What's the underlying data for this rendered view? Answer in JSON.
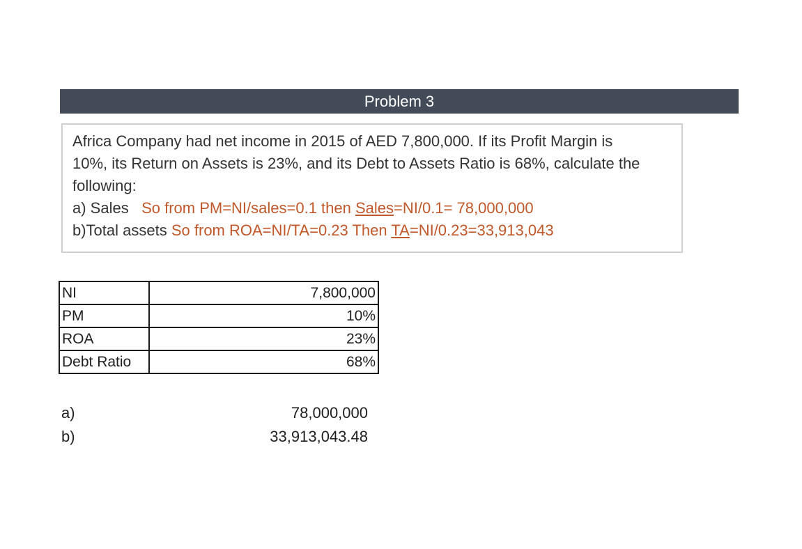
{
  "header": {
    "title": "Problem 3"
  },
  "problem": {
    "line1": "Africa Company had net income in 2015 of AED 7,800,000. If its Profit Margin is",
    "line2": "10%, its Return on Assets is 23%, and its Debt to Assets Ratio is 68%, calculate the",
    "line3": "following:",
    "a_label": "a) Sales",
    "a_note_1": "So from PM=NI/sales=0.1 then ",
    "a_note_u": "Sales",
    "a_note_2": "=NI/0.1= 78,000,000",
    "b_label": "b)Total assets",
    "b_note_1": "So from ROA=NI/TA=0.23 Then ",
    "b_note_u": "TA",
    "b_note_2": "=NI/0.23=33,913,043"
  },
  "table": {
    "rows": [
      {
        "label": "NI",
        "value": "7,800,000"
      },
      {
        "label": "PM",
        "value": "10%"
      },
      {
        "label": "ROA",
        "value": "23%"
      },
      {
        "label": "Debt Ratio",
        "value": "68%"
      }
    ]
  },
  "answers": [
    {
      "label": "a)",
      "value": "78,000,000"
    },
    {
      "label": "b)",
      "value": "33,913,043.48"
    }
  ],
  "colors": {
    "header_bg": "#434b58",
    "note_text": "#c0582a"
  }
}
